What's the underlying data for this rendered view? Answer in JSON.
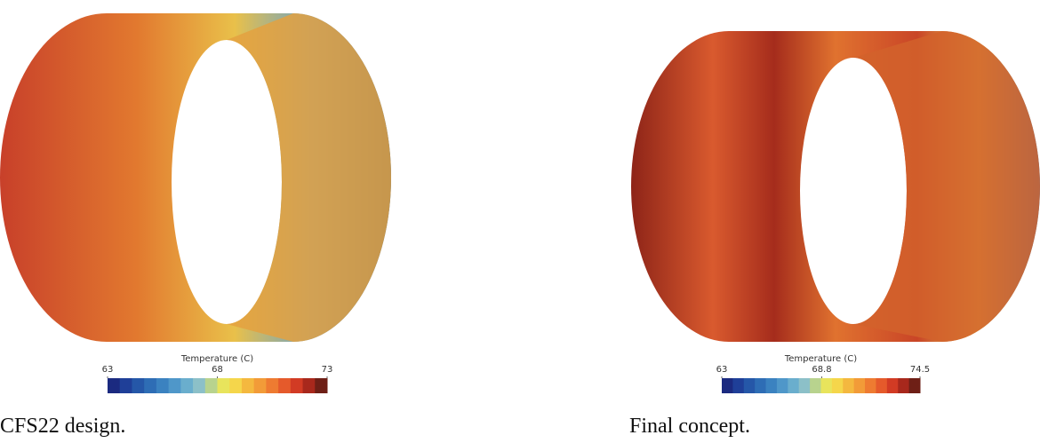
{
  "panels": [
    {
      "caption": "CFS22 design.",
      "colorbar": {
        "title": "Temperature (C)",
        "range": [
          63,
          73
        ],
        "ticks": [
          63,
          68,
          73
        ]
      }
    },
    {
      "caption": "Final concept.",
      "colorbar": {
        "title": "Temperature (C)",
        "range": [
          63,
          74.5
        ],
        "ticks": [
          63,
          68.8,
          74.5
        ]
      }
    }
  ]
}
